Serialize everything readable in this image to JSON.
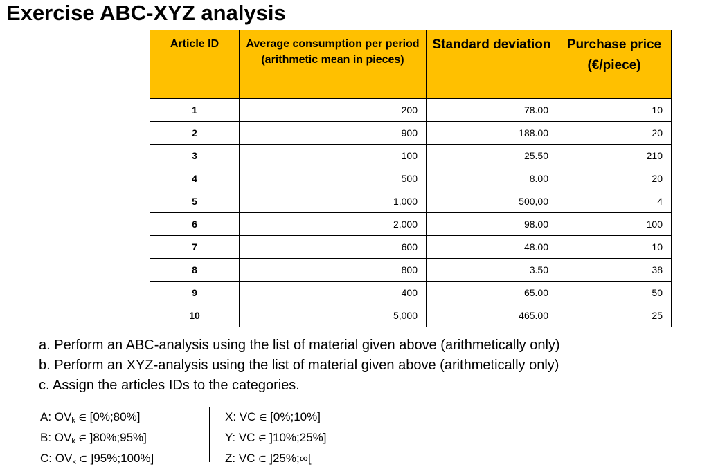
{
  "title": "Exercise ABC-XYZ analysis",
  "table": {
    "headers": [
      "Article ID",
      "Average consumption per period (arithmetic mean in pieces)",
      "Standard deviation",
      "Purchase price (€/piece)"
    ],
    "header_color": "#ffc000",
    "rows": [
      {
        "id": "1",
        "consumption": "200",
        "std": "78.00",
        "price": "10"
      },
      {
        "id": "2",
        "consumption": "900",
        "std": "188.00",
        "price": "20"
      },
      {
        "id": "3",
        "consumption": "100",
        "std": "25.50",
        "price": "210"
      },
      {
        "id": "4",
        "consumption": "500",
        "std": "8.00",
        "price": "20"
      },
      {
        "id": "5",
        "consumption": "1,000",
        "std": "500,00",
        "price": "4"
      },
      {
        "id": "6",
        "consumption": "2,000",
        "std": "98.00",
        "price": "100"
      },
      {
        "id": "7",
        "consumption": "600",
        "std": "48.00",
        "price": "10"
      },
      {
        "id": "8",
        "consumption": "800",
        "std": "3.50",
        "price": "38"
      },
      {
        "id": "9",
        "consumption": "400",
        "std": "65.00",
        "price": "50"
      },
      {
        "id": "10",
        "consumption": "5,000",
        "std": "465.00",
        "price": "25"
      }
    ]
  },
  "tasks": [
    "a. Perform an ABC-analysis using the list of material given above (arithmetically only)",
    "b. Perform an XYZ-analysis using the list of material given above (arithmetically only)",
    "c. Assign the articles IDs to the categories."
  ],
  "abc_categories": [
    {
      "prefix": "A: OV",
      "sub": "k",
      "range": "[0%;80%]"
    },
    {
      "prefix": "B: OV",
      "sub": "k",
      "range": "]80%;95%]"
    },
    {
      "prefix": "C: OV",
      "sub": "k",
      "range": "]95%;100%]"
    }
  ],
  "xyz_categories": [
    {
      "prefix": "X: VC",
      "range": "[0%;10%]"
    },
    {
      "prefix": "Y: VC",
      "range": "]10%;25%]"
    },
    {
      "prefix": "Z: VC",
      "range": "]25%;∞["
    }
  ],
  "element_of": "∈"
}
